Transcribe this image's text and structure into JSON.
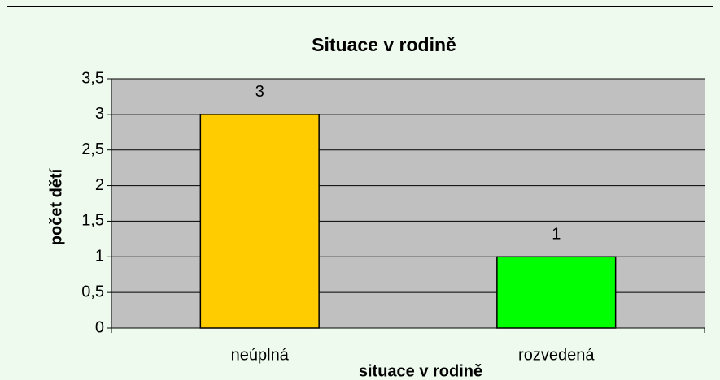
{
  "chart_data": {
    "type": "bar",
    "title": "Situace v rodině",
    "x_label": "situace v rodině",
    "y_label": "počet dětí",
    "categories": [
      "neúplná",
      "rozvedená"
    ],
    "values": [
      3,
      1
    ],
    "colors": [
      "#ffcc00",
      "#00ff00"
    ],
    "ylim": [
      0,
      3.5
    ],
    "yticks": [
      0,
      {
        "value": 0.5,
        "label": "0,5"
      },
      1,
      {
        "value": 1.5,
        "label": "1,5"
      },
      2,
      {
        "value": 2.5,
        "label": "2,5"
      },
      3,
      {
        "value": 3.5,
        "label": "3,5"
      }
    ],
    "grid": true
  }
}
